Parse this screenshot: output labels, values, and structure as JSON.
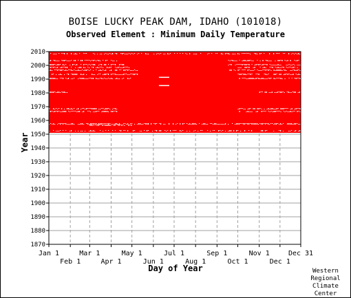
{
  "chart_data": {
    "type": "heatmap",
    "title": "BOISE LUCKY PEAK DAM, IDAHO   (101018)",
    "subtitle": "Observed Element : Minimum Daily Temperature",
    "xlabel": "Day of Year",
    "ylabel": "Year",
    "ylim": [
      1870,
      2010
    ],
    "y_ticks": [
      1870,
      1880,
      1890,
      1900,
      1910,
      1920,
      1930,
      1940,
      1950,
      1960,
      1970,
      1980,
      1990,
      2000,
      2010
    ],
    "x_ticks_upper": [
      "Jan 1",
      "Mar 1",
      "May 1",
      "Jul 1",
      "Sep 1",
      "Nov 1",
      "Dec 31"
    ],
    "x_ticks_lower": [
      "Feb 1",
      "Apr 1",
      "Jun 1",
      "Aug 1",
      "Oct 1",
      "Dec 1"
    ],
    "x_ticks_upper_day": [
      1,
      60,
      121,
      182,
      244,
      305,
      365
    ],
    "x_ticks_lower_day": [
      32,
      91,
      152,
      213,
      274,
      335
    ],
    "grid": true,
    "data_color": "#ff0000",
    "missing_color": "#ffffff",
    "observed_years": [
      1951,
      2009
    ],
    "missing_spans": [
      {
        "year": 1952,
        "day_start": 1,
        "day_end": 365,
        "density": 0.35
      },
      {
        "year": 1956,
        "day_start": 60,
        "day_end": 121,
        "density": 0.5
      },
      {
        "year": 1957,
        "day_start": 1,
        "day_end": 365,
        "density": 0.6
      },
      {
        "year": 1966,
        "day_start": 1,
        "day_end": 100,
        "density": 0.55
      },
      {
        "year": 1966,
        "day_start": 274,
        "day_end": 365,
        "density": 0.55
      },
      {
        "year": 1968,
        "day_start": 1,
        "day_end": 100,
        "density": 0.55
      },
      {
        "year": 1968,
        "day_start": 274,
        "day_end": 365,
        "density": 0.55
      },
      {
        "year": 1980,
        "day_start": 1,
        "day_end": 30,
        "density": 0.7
      },
      {
        "year": 1980,
        "day_start": 305,
        "day_end": 365,
        "density": 0.6
      },
      {
        "year": 1985,
        "day_start": 160,
        "day_end": 175,
        "density": 1.0
      },
      {
        "year": 1991,
        "day_start": 160,
        "day_end": 175,
        "density": 1.0
      },
      {
        "year": 1990,
        "day_start": 1,
        "day_end": 120,
        "density": 0.55
      },
      {
        "year": 1993,
        "day_start": 1,
        "day_end": 130,
        "density": 0.55
      },
      {
        "year": 1996,
        "day_start": 1,
        "day_end": 130,
        "density": 0.55
      },
      {
        "year": 1998,
        "day_start": 1,
        "day_end": 120,
        "density": 0.5
      },
      {
        "year": 2000,
        "day_start": 1,
        "day_end": 110,
        "density": 0.55
      },
      {
        "year": 2003,
        "day_start": 1,
        "day_end": 100,
        "density": 0.5
      },
      {
        "year": 1990,
        "day_start": 274,
        "day_end": 365,
        "density": 0.55
      },
      {
        "year": 1993,
        "day_start": 274,
        "day_end": 365,
        "density": 0.55
      },
      {
        "year": 1996,
        "day_start": 260,
        "day_end": 365,
        "density": 0.55
      },
      {
        "year": 1998,
        "day_start": 274,
        "day_end": 365,
        "density": 0.5
      },
      {
        "year": 2000,
        "day_start": 260,
        "day_end": 365,
        "density": 0.55
      },
      {
        "year": 2003,
        "day_start": 260,
        "day_end": 365,
        "density": 0.5
      },
      {
        "year": 2008,
        "day_start": 1,
        "day_end": 365,
        "density": 0.4
      }
    ]
  },
  "credit": [
    "Western",
    "Regional",
    "Climate",
    "Center"
  ]
}
